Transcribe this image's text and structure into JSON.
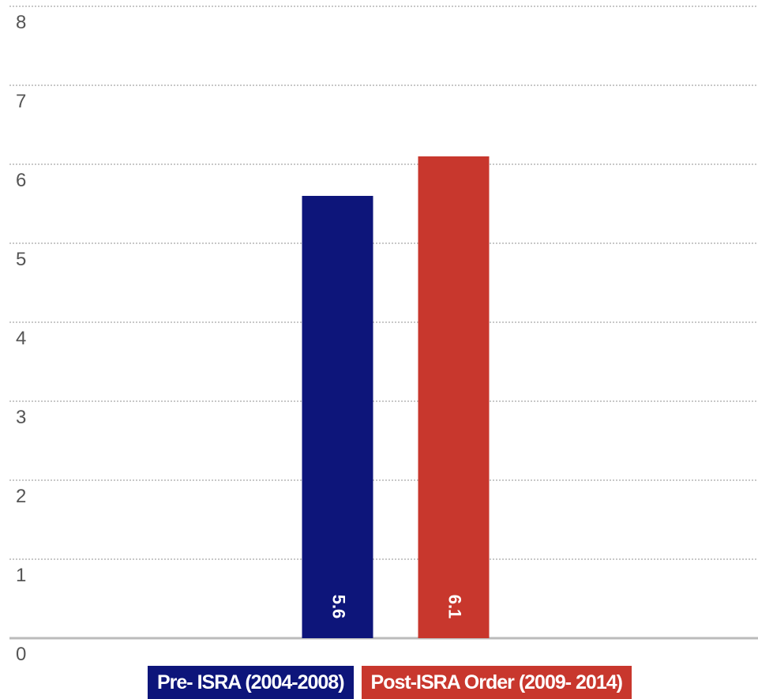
{
  "chart_data": {
    "type": "bar",
    "categories": [
      null
    ],
    "series": [
      {
        "name": "Pre- ISRA (2004-2008)",
        "color": "#0d157a",
        "values": [
          5.6
        ]
      },
      {
        "name": "Post-ISRA Order (2009- 2014)",
        "color": "#c8372d",
        "values": [
          6.1
        ]
      }
    ],
    "ylim": [
      0,
      8
    ],
    "yticks": [
      0,
      1,
      2,
      3,
      4,
      5,
      6,
      7,
      8
    ],
    "grid": true,
    "legend": "bottom"
  }
}
